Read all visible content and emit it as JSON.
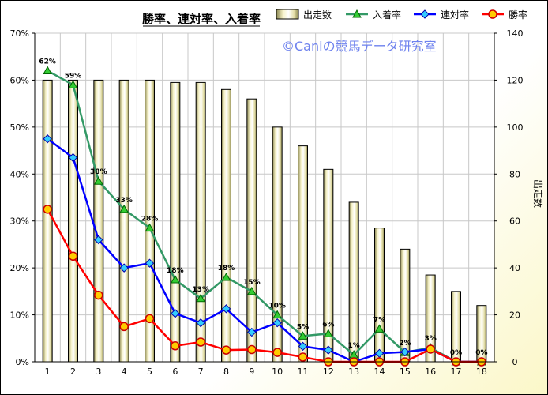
{
  "chart_data": {
    "type": "bar",
    "title": "勝率、連対率、入着率",
    "watermark": "©Caniの競馬データ研究室",
    "categories": [
      "1",
      "2",
      "3",
      "4",
      "5",
      "6",
      "7",
      "8",
      "9",
      "10",
      "11",
      "12",
      "13",
      "14",
      "15",
      "16",
      "17",
      "18"
    ],
    "y_left": {
      "min": 0,
      "max": 70,
      "step": 10,
      "suffix": "%",
      "ticks": [
        "0%",
        "10%",
        "20%",
        "30%",
        "40%",
        "50%",
        "60%",
        "70%"
      ]
    },
    "y_right": {
      "min": 0,
      "max": 140,
      "step": 20,
      "label": "出走数",
      "ticks": [
        "0",
        "20",
        "40",
        "60",
        "80",
        "100",
        "120",
        "140"
      ]
    },
    "grid": true,
    "legend_position": "top",
    "series": [
      {
        "name": "出走数",
        "kind": "bar",
        "axis": "right",
        "color": "#e8e4b0",
        "values": [
          120,
          120,
          120,
          120,
          120,
          119,
          119,
          116,
          112,
          100,
          92,
          82,
          68,
          57,
          48,
          37,
          30,
          24
        ]
      },
      {
        "name": "入着率",
        "kind": "line",
        "axis": "left",
        "color": "#339966",
        "marker": "triangle",
        "values": [
          62,
          59,
          38.5,
          32.5,
          28.5,
          17.5,
          13.5,
          18,
          15,
          10,
          5.5,
          6,
          1.5,
          7,
          2,
          3,
          0,
          0
        ],
        "labels": [
          "62%",
          "59%",
          "38%",
          "33%",
          "28%",
          "18%",
          "13%",
          "18%",
          "15%",
          "10%",
          "5%",
          "6%",
          "1%",
          "7%",
          "2%",
          "3%",
          "0%",
          "0%"
        ]
      },
      {
        "name": "連対率",
        "kind": "line",
        "axis": "left",
        "color": "#0000ff",
        "marker": "diamond",
        "values": [
          47.5,
          43.5,
          26,
          20,
          21,
          10.3,
          8.3,
          11.3,
          6.3,
          8.3,
          3.3,
          2.5,
          0,
          1.8,
          2.1,
          2.7,
          0,
          0
        ]
      },
      {
        "name": "勝率",
        "kind": "line",
        "axis": "left",
        "color": "#ff0000",
        "marker": "circle",
        "values": [
          32.5,
          22.5,
          14.2,
          7.5,
          9.2,
          3.4,
          4.2,
          2.5,
          2.6,
          2,
          1,
          0,
          0,
          0,
          0,
          2.7,
          0,
          0
        ]
      }
    ]
  }
}
